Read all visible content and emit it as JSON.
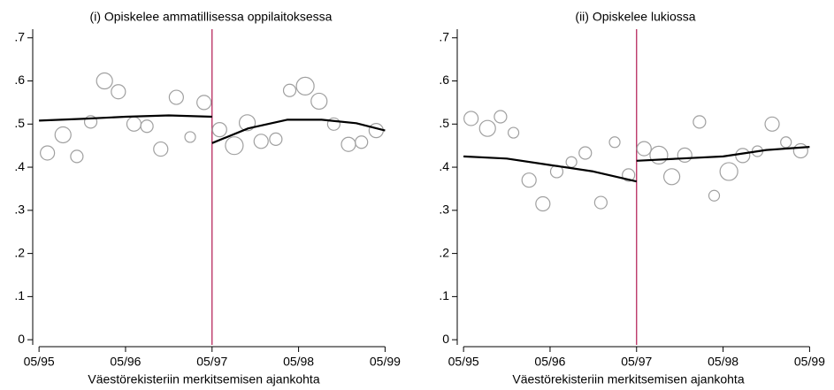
{
  "chart_data": [
    {
      "type": "scatter",
      "title": "(i) Opiskelee ammatillisessa oppilaitoksessa",
      "x_label": "Väestörekisteriin merkitsemisen ajankohta",
      "xlim": [
        1995.26,
        1999.38
      ],
      "xticks": [
        {
          "value": 1995.333,
          "label": "05/95"
        },
        {
          "value": 1996.333,
          "label": "05/96"
        },
        {
          "value": 1997.333,
          "label": "05/97"
        },
        {
          "value": 1998.333,
          "label": "05/98"
        },
        {
          "value": 1999.333,
          "label": "05/99"
        }
      ],
      "ylim": [
        -0.012,
        0.72
      ],
      "yticks": [
        {
          "value": 0,
          "label": "0"
        },
        {
          "value": 0.1,
          "label": ".1"
        },
        {
          "value": 0.2,
          "label": ".2"
        },
        {
          "value": 0.3,
          "label": ".3"
        },
        {
          "value": 0.4,
          "label": ".4"
        },
        {
          "value": 0.5,
          "label": ".5"
        },
        {
          "value": 0.6,
          "label": ".6"
        },
        {
          "value": 0.7,
          "label": ".7"
        }
      ],
      "cutoff": 1997.333,
      "cutoff_color": "#b0174f",
      "point_color": "#a0a0a0",
      "points": {
        "x": [
          1995.43,
          1995.61,
          1995.77,
          1995.93,
          1996.09,
          1996.25,
          1996.43,
          1996.58,
          1996.74,
          1996.92,
          1997.08,
          1997.24,
          1997.42,
          1997.59,
          1997.74,
          1997.9,
          1998.07,
          1998.23,
          1998.41,
          1998.57,
          1998.74,
          1998.91,
          1999.06,
          1999.23
        ],
        "values": [
          0.433,
          0.475,
          0.425,
          0.505,
          0.6,
          0.575,
          0.5,
          0.495,
          0.442,
          0.562,
          0.47,
          0.55,
          0.487,
          0.45,
          0.503,
          0.46,
          0.465,
          0.578,
          0.588,
          0.553,
          0.5,
          0.453,
          0.458,
          0.485
        ],
        "sizes": [
          8,
          9,
          7,
          7,
          9,
          8,
          8,
          7,
          8,
          8,
          6,
          8,
          8,
          10,
          9,
          8,
          7,
          7,
          10,
          9,
          7,
          8,
          7,
          8
        ]
      },
      "fit_color": "#000000",
      "fit": [
        {
          "x": [
            1995.333,
            1995.833,
            1996.333,
            1996.833,
            1997.333
          ],
          "values": [
            0.508,
            0.512,
            0.517,
            0.52,
            0.517
          ]
        },
        {
          "x": [
            1997.333,
            1997.75,
            1998.2,
            1998.6,
            1999.0,
            1999.333
          ],
          "values": [
            0.456,
            0.49,
            0.51,
            0.51,
            0.502,
            0.485
          ]
        }
      ]
    },
    {
      "type": "scatter",
      "title": "(ii) Opiskelee lukiossa",
      "x_label": "Väestörekisteriin merkitsemisen ajankohta",
      "xlim": [
        1995.26,
        1999.38
      ],
      "xticks": [
        {
          "value": 1995.333,
          "label": "05/95"
        },
        {
          "value": 1996.333,
          "label": "05/96"
        },
        {
          "value": 1997.333,
          "label": "05/97"
        },
        {
          "value": 1998.333,
          "label": "05/98"
        },
        {
          "value": 1999.333,
          "label": "05/99"
        }
      ],
      "ylim": [
        -0.012,
        0.72
      ],
      "yticks": [
        {
          "value": 0,
          "label": "0"
        },
        {
          "value": 0.1,
          "label": ".1"
        },
        {
          "value": 0.2,
          "label": ".2"
        },
        {
          "value": 0.3,
          "label": ".3"
        },
        {
          "value": 0.4,
          "label": ".4"
        },
        {
          "value": 0.5,
          "label": ".5"
        },
        {
          "value": 0.6,
          "label": ".6"
        },
        {
          "value": 0.7,
          "label": ".7"
        }
      ],
      "cutoff": 1997.333,
      "cutoff_color": "#b0174f",
      "point_color": "#a0a0a0",
      "points": {
        "x": [
          1995.42,
          1995.61,
          1995.76,
          1995.91,
          1996.09,
          1996.25,
          1996.41,
          1996.58,
          1996.74,
          1996.92,
          1997.08,
          1997.24,
          1997.42,
          1997.59,
          1997.74,
          1997.89,
          1998.06,
          1998.23,
          1998.4,
          1998.56,
          1998.73,
          1998.9,
          1999.06,
          1999.23
        ],
        "values": [
          0.513,
          0.49,
          0.517,
          0.48,
          0.37,
          0.315,
          0.39,
          0.412,
          0.433,
          0.318,
          0.458,
          0.382,
          0.443,
          0.428,
          0.378,
          0.428,
          0.505,
          0.334,
          0.39,
          0.427,
          0.437,
          0.5,
          0.458,
          0.438
        ],
        "sizes": [
          8,
          9,
          7,
          6,
          8,
          8,
          7,
          6,
          7,
          7,
          6,
          7,
          8,
          10,
          9,
          8,
          7,
          6,
          10,
          8,
          6,
          8,
          6,
          8
        ]
      },
      "fit_color": "#000000",
      "fit": [
        {
          "x": [
            1995.333,
            1995.833,
            1996.333,
            1996.833,
            1997.333
          ],
          "values": [
            0.425,
            0.42,
            0.405,
            0.39,
            0.367
          ]
        },
        {
          "x": [
            1997.333,
            1997.833,
            1998.333,
            1998.833,
            1999.333
          ],
          "values": [
            0.415,
            0.42,
            0.425,
            0.44,
            0.447
          ]
        }
      ]
    }
  ]
}
